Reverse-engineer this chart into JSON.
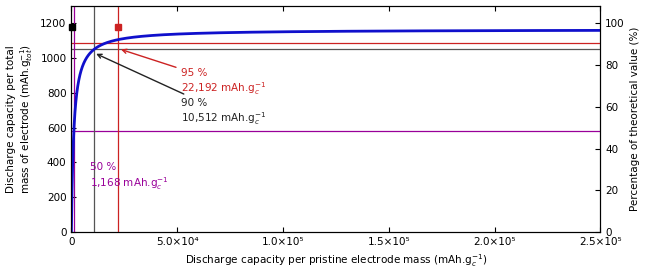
{
  "xlim": [
    0,
    250000
  ],
  "ylim_left": [
    0,
    1300
  ],
  "ylim_right": [
    0,
    108.33
  ],
  "ylabel_left": "Discharge capacity per total\nmass of electrode (mAh.g$_{tot}^{-1}$)",
  "ylabel_right": "Percentage of theoretical value (%)",
  "xlabel": "Discharge capacity per pristine electrode mass (mAh.g$_c^{-1}$)",
  "curve_color": "#1010cc",
  "hline_95_y": 1083,
  "hline_90_y": 1050,
  "hline_50_y": 578,
  "hline_95_color": "#cc2222",
  "hline_90_color": "#555555",
  "hline_50_color": "#990099",
  "vline_95_x": 22192,
  "vline_90_x": 10512,
  "vline_50_x": 1168,
  "marker_black_x": 500,
  "marker_black_y": 1175,
  "marker_red_x": 22192,
  "marker_red_y": 1175,
  "ann_95_color": "#cc2222",
  "ann_90_color": "#222222",
  "ann_50_color": "#990099",
  "xticks": [
    0,
    50000,
    100000,
    150000,
    200000,
    250000
  ],
  "xtick_labels": [
    "0",
    "5.0×10⁴",
    "1.0×10⁵",
    "1.5×10⁵",
    "2.0×10⁵",
    "2.5×10⁵"
  ],
  "yticks_left": [
    0,
    200,
    400,
    600,
    800,
    1000,
    1200
  ],
  "yticks_right": [
    0,
    20,
    40,
    60,
    80,
    100
  ],
  "fig_width": 6.46,
  "fig_height": 2.75,
  "dpi": 100,
  "curve_C": 1163,
  "curve_k": 1168,
  "curve_peak_x": 22192,
  "curve_peak_y": 1113,
  "curve_plateau_y": 1163
}
